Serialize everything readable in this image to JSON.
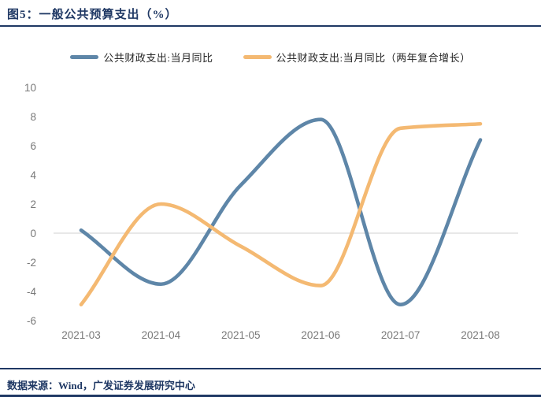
{
  "header": {
    "title": "图5：一般公共预算支出（%）"
  },
  "legend": {
    "items": [
      {
        "label": "公共财政支出:当月同比",
        "color": "#5e86a8"
      },
      {
        "label": "公共财政支出:当月同比（两年复合增长）",
        "color": "#f4b972"
      }
    ]
  },
  "footer": {
    "source": "数据来源：Wind，广发证券发展研究中心"
  },
  "colors": {
    "accent_navy": "#1f3864",
    "axis_text": "#787878",
    "zero_line": "#d9d9d9",
    "series_blue": "#5e86a8",
    "series_orange": "#f4b972"
  },
  "chart_data": {
    "type": "line",
    "title": "图5：一般公共预算支出（%）",
    "categories": [
      "2021-03",
      "2021-04",
      "2021-05",
      "2021-06",
      "2021-07",
      "2021-08"
    ],
    "series": [
      {
        "name": "公共财政支出:当月同比",
        "color": "#5e86a8",
        "values": [
          0.2,
          -3.5,
          3.3,
          7.8,
          -4.9,
          6.4
        ]
      },
      {
        "name": "公共财政支出:当月同比（两年复合增长）",
        "color": "#f4b972",
        "values": [
          -4.9,
          2.0,
          -0.9,
          -3.6,
          7.2,
          7.5
        ]
      }
    ],
    "ylabel": "",
    "xlabel": "",
    "ylim": [
      -6,
      10
    ],
    "ytick_step": 2,
    "legend_position": "top",
    "grid": "zero-line-only",
    "line_style": "smooth"
  }
}
